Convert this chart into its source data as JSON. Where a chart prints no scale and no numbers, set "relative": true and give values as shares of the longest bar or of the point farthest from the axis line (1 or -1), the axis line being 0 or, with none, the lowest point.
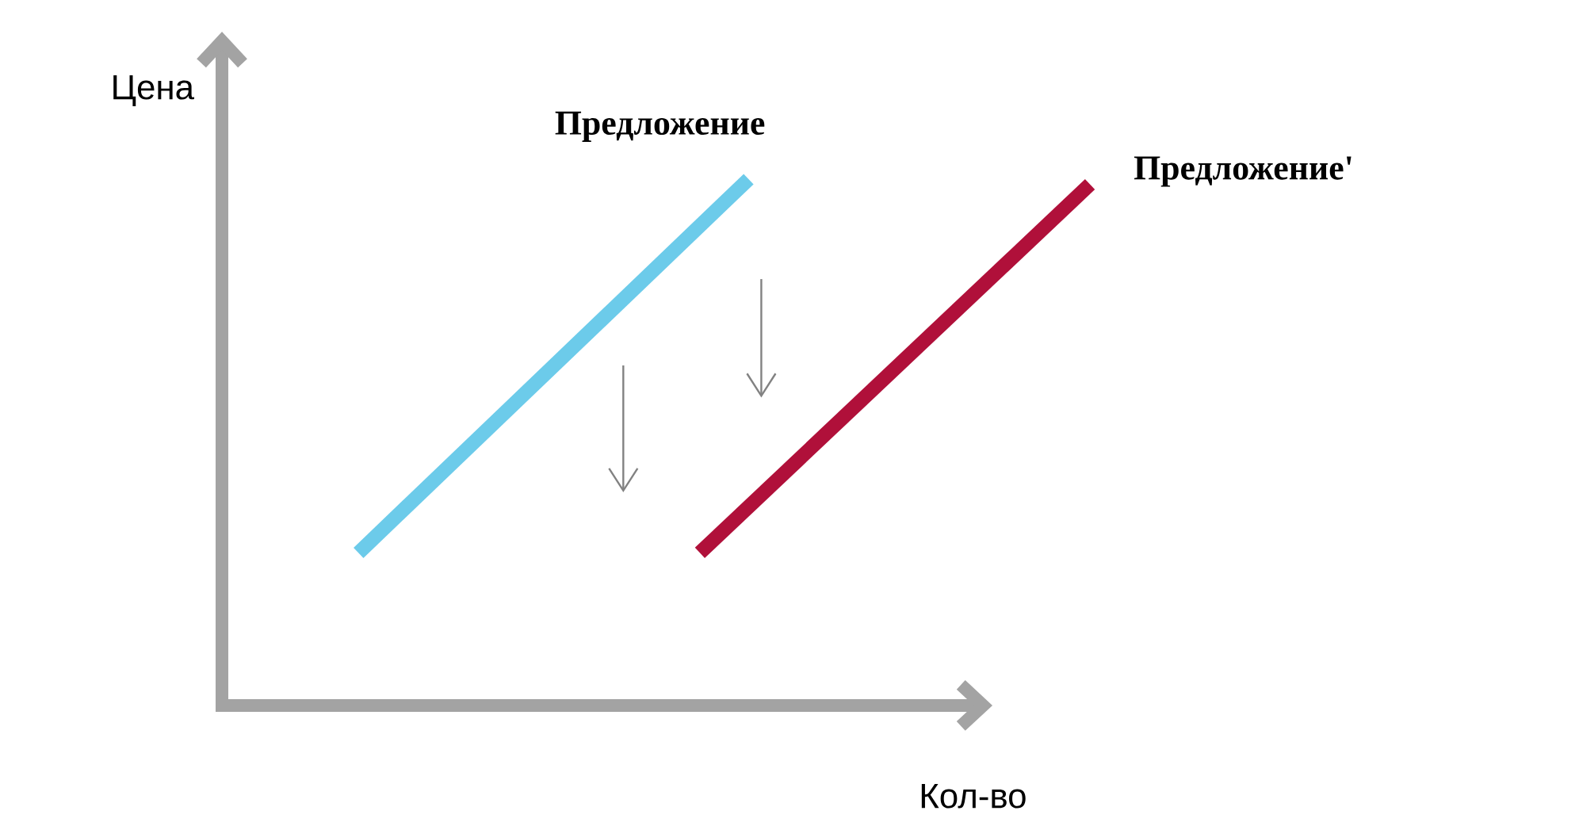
{
  "chart_data": {
    "type": "line",
    "xlabel": "Кол-во",
    "ylabel": "Цена",
    "relative": true,
    "categories": [
      null,
      null,
      null,
      null,
      null,
      null,
      null,
      null,
      null,
      null,
      null,
      null,
      null,
      null,
      null,
      null
    ],
    "series": [
      {
        "name": "Предложение",
        "color": "#6ccbea",
        "values": [
          0.29,
          null,
          null,
          null,
          null,
          null,
          null,
          null,
          1.0,
          null,
          null,
          null,
          null,
          null,
          null,
          null
        ]
      },
      {
        "name": "Предложение'",
        "color": "#b0103a",
        "values": [
          null,
          null,
          null,
          null,
          null,
          null,
          null,
          0.29,
          null,
          null,
          null,
          null,
          null,
          null,
          null,
          0.99
        ]
      }
    ]
  }
}
